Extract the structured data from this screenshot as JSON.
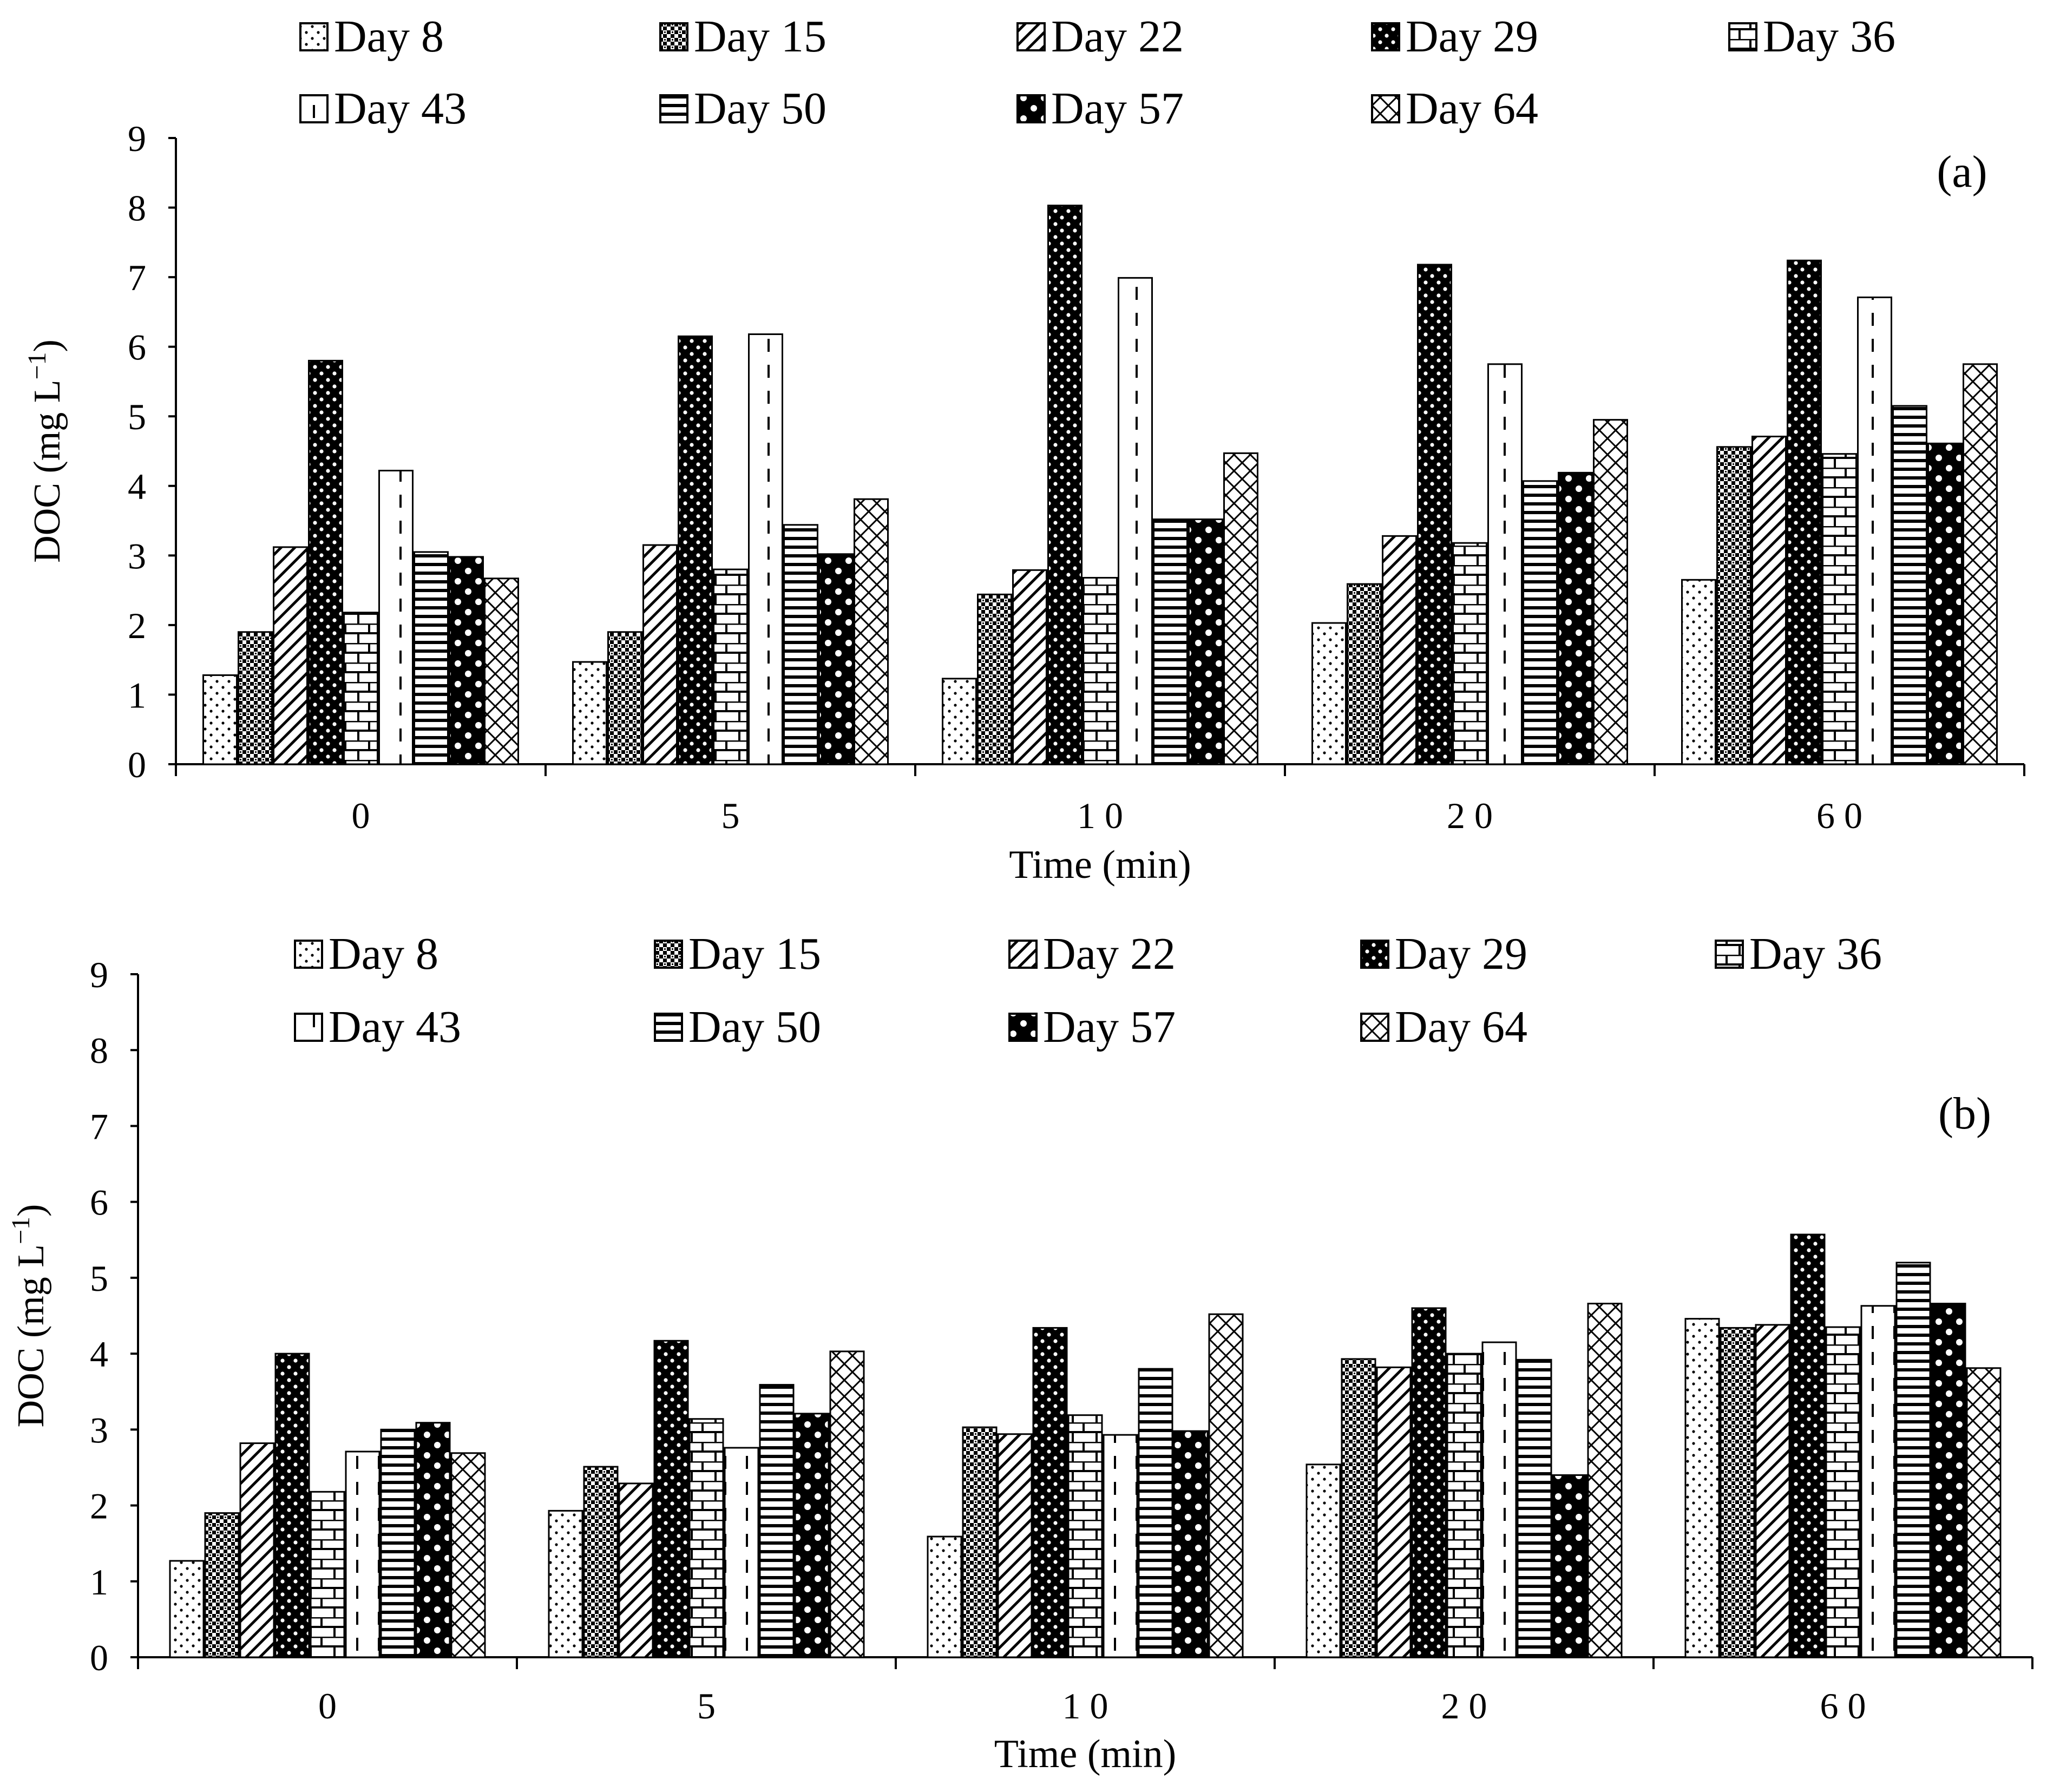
{
  "chart_data": [
    {
      "type": "bar",
      "panel_label": "(a)",
      "xlabel": "Time (min)",
      "ylabel_main": "DOC (mg L",
      "ylabel_sup": "−1",
      "ylabel_close": ")",
      "ylim": [
        0,
        9
      ],
      "yticks": [
        "0",
        "1",
        "2",
        "3",
        "4",
        "5",
        "6",
        "7",
        "8",
        "9"
      ],
      "categories": [
        "0",
        "5",
        "1 0",
        "2 0",
        "6 0"
      ],
      "legend_position": "top",
      "series": [
        {
          "name": "Day 8",
          "values": [
            1.28,
            1.47,
            1.23,
            2.03,
            2.65
          ]
        },
        {
          "name": "Day 15",
          "values": [
            1.9,
            1.9,
            2.44,
            2.59,
            4.56
          ]
        },
        {
          "name": "Day 22",
          "values": [
            3.12,
            3.15,
            2.79,
            3.28,
            4.71
          ]
        },
        {
          "name": "Day 29",
          "values": [
            5.8,
            6.15,
            8.03,
            7.18,
            7.24
          ]
        },
        {
          "name": "Day 36",
          "values": [
            2.18,
            2.8,
            2.68,
            3.18,
            4.46
          ]
        },
        {
          "name": "Day 43",
          "values": [
            4.22,
            6.18,
            6.99,
            5.75,
            6.71
          ]
        },
        {
          "name": "Day 50",
          "values": [
            3.05,
            3.44,
            3.52,
            4.07,
            5.15
          ]
        },
        {
          "name": "Day 57",
          "values": [
            2.98,
            3.02,
            3.52,
            4.19,
            4.61
          ]
        },
        {
          "name": "Day 64",
          "values": [
            2.67,
            3.81,
            4.47,
            4.95,
            5.75
          ]
        }
      ]
    },
    {
      "type": "bar",
      "panel_label": "(b)",
      "xlabel": "Time (min)",
      "ylabel_main": "DOC (mg L",
      "ylabel_sup": "−1",
      "ylabel_close": ")",
      "ylim": [
        0,
        9
      ],
      "yticks": [
        "0",
        "1",
        "2",
        "3",
        "4",
        "5",
        "6",
        "7",
        "8",
        "9"
      ],
      "categories": [
        "0",
        "5",
        "1 0",
        "2 0",
        "6 0"
      ],
      "legend_position": "top",
      "series": [
        {
          "name": "Day 8",
          "values": [
            1.27,
            1.93,
            1.59,
            2.54,
            4.46
          ]
        },
        {
          "name": "Day 15",
          "values": [
            1.9,
            2.51,
            3.03,
            3.93,
            4.34
          ]
        },
        {
          "name": "Day 22",
          "values": [
            2.82,
            2.29,
            2.94,
            3.82,
            4.38
          ]
        },
        {
          "name": "Day 29",
          "values": [
            4.0,
            4.17,
            4.34,
            4.6,
            5.57
          ]
        },
        {
          "name": "Day 36",
          "values": [
            2.18,
            3.14,
            3.19,
            4.0,
            4.35
          ]
        },
        {
          "name": "Day 43",
          "values": [
            2.71,
            2.76,
            2.93,
            4.15,
            4.63
          ]
        },
        {
          "name": "Day 50",
          "values": [
            3.0,
            3.59,
            3.8,
            3.92,
            5.2
          ]
        },
        {
          "name": "Day 57",
          "values": [
            3.09,
            3.21,
            2.98,
            2.4,
            4.66
          ]
        },
        {
          "name": "Day 64",
          "values": [
            2.69,
            4.03,
            4.52,
            4.66,
            3.81
          ]
        }
      ]
    }
  ]
}
